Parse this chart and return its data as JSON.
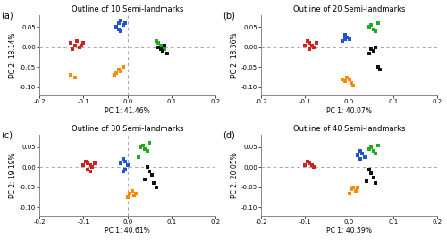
{
  "panels": [
    {
      "label": "(a)",
      "title": "Outline of 10 Semi-landmarks",
      "xlabel": "PC 1: 41.46%",
      "ylabel": "PC 2: 18.14%",
      "xlim": [
        -0.2,
        0.2
      ],
      "ylim": [
        -0.12,
        0.08
      ],
      "yticks": [
        -0.1,
        -0.05,
        0.0,
        0.05
      ],
      "xticks": [
        -0.2,
        -0.1,
        0.0,
        0.1,
        0.2
      ],
      "groups": {
        "blue": [
          [
            -0.02,
            0.06
          ],
          [
            -0.015,
            0.065
          ],
          [
            -0.01,
            0.055
          ],
          [
            -0.025,
            0.05
          ],
          [
            -0.02,
            0.045
          ],
          [
            -0.015,
            0.04
          ],
          [
            -0.005,
            0.06
          ]
        ],
        "red": [
          [
            -0.13,
            0.01
          ],
          [
            -0.12,
            0.005
          ],
          [
            -0.11,
            0.0
          ],
          [
            -0.1,
            0.01
          ],
          [
            -0.115,
            0.015
          ],
          [
            -0.125,
            -0.005
          ],
          [
            -0.105,
            0.005
          ]
        ],
        "green": [
          [
            0.07,
            0.01
          ],
          [
            0.075,
            0.005
          ],
          [
            0.08,
            0.0
          ],
          [
            0.065,
            0.015
          ],
          [
            0.085,
            -0.005
          ]
        ],
        "black": [
          [
            0.075,
            -0.005
          ],
          [
            0.08,
            -0.01
          ],
          [
            0.085,
            0.005
          ],
          [
            0.07,
            0.0
          ],
          [
            0.09,
            -0.015
          ]
        ],
        "orange": [
          [
            -0.02,
            -0.055
          ],
          [
            -0.015,
            -0.06
          ],
          [
            -0.025,
            -0.065
          ],
          [
            -0.01,
            -0.05
          ],
          [
            -0.03,
            -0.07
          ],
          [
            -0.13,
            -0.07
          ],
          [
            -0.12,
            -0.075
          ]
        ]
      }
    },
    {
      "label": "(b)",
      "title": "Outline of 20 Semi-landmarks",
      "xlabel": "PC 1: 40.07%",
      "ylabel": "PC 2: 18.36%",
      "xlim": [
        -0.2,
        0.2
      ],
      "ylim": [
        -0.12,
        0.08
      ],
      "yticks": [
        -0.1,
        -0.05,
        0.0,
        0.05
      ],
      "xticks": [
        -0.2,
        -0.1,
        0.0,
        0.1,
        0.2
      ],
      "groups": {
        "blue": [
          [
            -0.01,
            0.02
          ],
          [
            -0.005,
            0.025
          ],
          [
            -0.015,
            0.015
          ],
          [
            0.0,
            0.02
          ],
          [
            -0.01,
            0.03
          ]
        ],
        "red": [
          [
            -0.09,
            0.01
          ],
          [
            -0.085,
            0.005
          ],
          [
            -0.095,
            0.015
          ],
          [
            -0.08,
            0.0
          ],
          [
            -0.1,
            0.005
          ],
          [
            -0.075,
            0.01
          ],
          [
            -0.09,
            -0.005
          ]
        ],
        "green": [
          [
            0.05,
            0.055
          ],
          [
            0.055,
            0.045
          ],
          [
            0.06,
            0.04
          ],
          [
            0.045,
            0.05
          ],
          [
            0.065,
            0.06
          ]
        ],
        "black": [
          [
            0.05,
            -0.005
          ],
          [
            0.055,
            -0.01
          ],
          [
            0.06,
            0.0
          ],
          [
            0.045,
            -0.015
          ],
          [
            0.065,
            -0.05
          ],
          [
            0.07,
            -0.055
          ]
        ],
        "orange": [
          [
            -0.005,
            -0.075
          ],
          [
            0.0,
            -0.08
          ],
          [
            -0.01,
            -0.085
          ],
          [
            0.005,
            -0.09
          ],
          [
            0.01,
            -0.095
          ],
          [
            -0.015,
            -0.08
          ]
        ]
      }
    },
    {
      "label": "(c)",
      "title": "Outline of 30 Semi-landmarks",
      "xlabel": "PC 1: 40.61%",
      "ylabel": "PC 2: 19.19%",
      "xlim": [
        -0.2,
        0.2
      ],
      "ylim": [
        -0.12,
        0.08
      ],
      "yticks": [
        -0.1,
        -0.05,
        0.0,
        0.05
      ],
      "xticks": [
        -0.2,
        -0.1,
        0.0,
        0.1,
        0.2
      ],
      "groups": {
        "blue": [
          [
            -0.01,
            0.02
          ],
          [
            -0.005,
            0.015
          ],
          [
            -0.015,
            0.01
          ],
          [
            0.0,
            0.005
          ],
          [
            -0.01,
            -0.01
          ],
          [
            -0.005,
            -0.005
          ]
        ],
        "red": [
          [
            -0.09,
            0.01
          ],
          [
            -0.085,
            0.005
          ],
          [
            -0.095,
            0.015
          ],
          [
            -0.08,
            0.0
          ],
          [
            -0.1,
            0.005
          ],
          [
            -0.075,
            0.01
          ],
          [
            -0.09,
            -0.005
          ],
          [
            -0.085,
            -0.01
          ]
        ],
        "green": [
          [
            0.035,
            0.055
          ],
          [
            0.04,
            0.045
          ],
          [
            0.045,
            0.04
          ],
          [
            0.03,
            0.05
          ],
          [
            0.05,
            0.06
          ],
          [
            0.025,
            0.025
          ]
        ],
        "black": [
          [
            0.045,
            0.0
          ],
          [
            0.05,
            -0.01
          ],
          [
            0.055,
            -0.02
          ],
          [
            0.04,
            -0.03
          ],
          [
            0.06,
            -0.04
          ],
          [
            0.065,
            -0.05
          ]
        ],
        "orange": [
          [
            0.01,
            -0.06
          ],
          [
            0.005,
            -0.065
          ],
          [
            0.015,
            -0.07
          ],
          [
            0.0,
            -0.075
          ],
          [
            0.02,
            -0.065
          ]
        ]
      }
    },
    {
      "label": "(d)",
      "title": "Outline of 40 Semi-landmarks",
      "xlabel": "PC 1: 40.59%",
      "ylabel": "PC 2: 20.05%",
      "xlim": [
        -0.2,
        0.2
      ],
      "ylim": [
        -0.12,
        0.08
      ],
      "yticks": [
        -0.1,
        -0.05,
        0.0,
        0.05
      ],
      "xticks": [
        -0.2,
        -0.1,
        0.0,
        0.1,
        0.2
      ],
      "groups": {
        "blue": [
          [
            0.025,
            0.04
          ],
          [
            0.03,
            0.035
          ],
          [
            0.02,
            0.03
          ],
          [
            0.035,
            0.025
          ],
          [
            0.025,
            0.02
          ]
        ],
        "red": [
          [
            -0.09,
            0.01
          ],
          [
            -0.085,
            0.005
          ],
          [
            -0.095,
            0.015
          ],
          [
            -0.08,
            0.0
          ],
          [
            -0.1,
            0.005
          ]
        ],
        "green": [
          [
            0.05,
            0.05
          ],
          [
            0.055,
            0.04
          ],
          [
            0.06,
            0.035
          ],
          [
            0.045,
            0.045
          ],
          [
            0.065,
            0.055
          ]
        ],
        "black": [
          [
            0.045,
            -0.005
          ],
          [
            0.05,
            -0.015
          ],
          [
            0.055,
            -0.025
          ],
          [
            0.04,
            -0.035
          ],
          [
            0.06,
            -0.04
          ]
        ],
        "orange": [
          [
            0.01,
            -0.05
          ],
          [
            0.005,
            -0.055
          ],
          [
            0.015,
            -0.06
          ],
          [
            0.0,
            -0.065
          ],
          [
            0.02,
            -0.05
          ]
        ]
      }
    }
  ],
  "color_map": {
    "blue": "#2255CC",
    "red": "#CC2222",
    "green": "#22AA22",
    "black": "#111111",
    "orange": "#FF8800"
  },
  "marker": "s",
  "markersize": 3,
  "bg_color": "#FFFFFF",
  "dashed_color": "#999999",
  "spine_color": "#888888",
  "tick_label_size": 5,
  "axis_label_size": 5.5,
  "title_size": 6,
  "panel_label_size": 7
}
